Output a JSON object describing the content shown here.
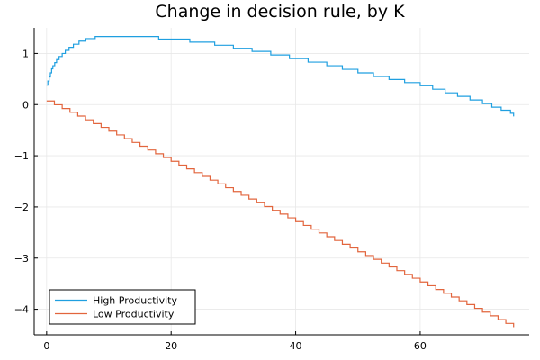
{
  "chart_data": {
    "type": "line",
    "title": "Change in decision rule, by K",
    "xlabel": "",
    "ylabel": "",
    "xlim": [
      -2,
      77.5
    ],
    "ylim": [
      -4.5,
      1.5
    ],
    "grid": true,
    "legend_position": "bottom-left",
    "x_ticks": [
      0,
      20,
      40,
      60
    ],
    "y_ticks": [
      1,
      0,
      -1,
      -2,
      -3,
      -4
    ],
    "x_tick_labels": [
      "0",
      "20",
      "40",
      "60"
    ],
    "y_tick_labels": [
      "1",
      "0",
      "−1",
      "−2",
      "−3",
      "−4"
    ],
    "series": [
      {
        "name": "High Productivity",
        "color": "#1f9fe0",
        "step": true,
        "points": [
          [
            0.0,
            0.38
          ],
          [
            0.2,
            0.46
          ],
          [
            0.4,
            0.54
          ],
          [
            0.6,
            0.62
          ],
          [
            0.8,
            0.7
          ],
          [
            1.0,
            0.76
          ],
          [
            1.3,
            0.82
          ],
          [
            1.6,
            0.88
          ],
          [
            2.0,
            0.94
          ],
          [
            2.5,
            1.0
          ],
          [
            3.0,
            1.06
          ],
          [
            3.6,
            1.12
          ],
          [
            4.3,
            1.18
          ],
          [
            5.2,
            1.24
          ],
          [
            6.3,
            1.29
          ],
          [
            7.8,
            1.33
          ],
          [
            18.0,
            1.28
          ],
          [
            23.0,
            1.22
          ],
          [
            27.0,
            1.16
          ],
          [
            30.0,
            1.1
          ],
          [
            33.0,
            1.04
          ],
          [
            36.0,
            0.97
          ],
          [
            39.0,
            0.9
          ],
          [
            42.0,
            0.83
          ],
          [
            45.0,
            0.76
          ],
          [
            47.5,
            0.69
          ],
          [
            50.0,
            0.62
          ],
          [
            52.5,
            0.55
          ],
          [
            55.0,
            0.49
          ],
          [
            57.5,
            0.43
          ],
          [
            60.0,
            0.37
          ],
          [
            62.0,
            0.3
          ],
          [
            64.0,
            0.23
          ],
          [
            66.0,
            0.16
          ],
          [
            68.0,
            0.09
          ],
          [
            70.0,
            0.02
          ],
          [
            71.5,
            -0.05
          ],
          [
            73.0,
            -0.11
          ],
          [
            74.5,
            -0.17
          ],
          [
            75.0,
            -0.23
          ]
        ]
      },
      {
        "name": "Low Productivity",
        "color": "#e2653d",
        "step": true,
        "segments": 60,
        "x_start": 0.0,
        "x_end": 75.0,
        "y_start": 0.07,
        "y_end": -4.35
      }
    ]
  }
}
